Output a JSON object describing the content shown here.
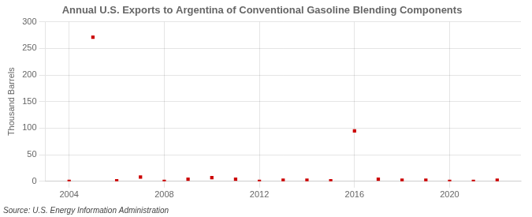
{
  "chart_data": {
    "type": "scatter",
    "title": "Annual U.S. Exports to Argentina of Conventional Gasoline Blending Components",
    "ylabel": "Thousand Barrels",
    "annotation": "Source: U.S. Energy Information Administration",
    "x": [
      2004,
      2005,
      2006,
      2007,
      2008,
      2009,
      2010,
      2011,
      2012,
      2013,
      2014,
      2015,
      2016,
      2017,
      2018,
      2019,
      2020,
      2021,
      2022
    ],
    "values": [
      0,
      271,
      1,
      8,
      0,
      4,
      7,
      4,
      0,
      2,
      2,
      1,
      95,
      4,
      2,
      2,
      0,
      0,
      2
    ],
    "color": "#cc0000",
    "marker": "square",
    "xlim": [
      2003,
      2023
    ],
    "xticks": [
      2004,
      2008,
      2012,
      2016,
      2020
    ],
    "ylim": [
      0,
      300
    ],
    "yticks": [
      0,
      50,
      100,
      150,
      200,
      250,
      300
    ],
    "grid": true
  }
}
